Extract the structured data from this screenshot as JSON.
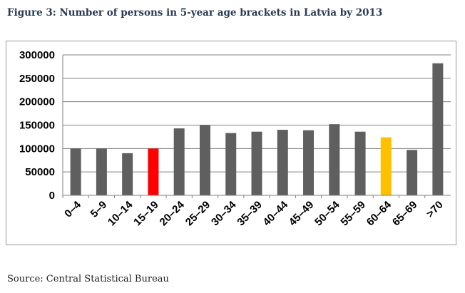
{
  "figure": {
    "title": "Figure 3: Number of persons in 5-year age brackets in Latvia by 2013",
    "source": "Source: Central Statistical Bureau"
  },
  "colors": {
    "default_bar": "#5f5f5f",
    "highlight_red": "#ff0000",
    "highlight_yellow": "#ffc000",
    "grid": "#808080"
  },
  "chart_data": {
    "type": "bar",
    "title": "",
    "xlabel": "",
    "ylabel": "",
    "categories": [
      "0–4",
      "5–9",
      "10–14",
      "15–19",
      "20–24",
      "25–29",
      "30–34",
      "35–39",
      "40–44",
      "45–49",
      "50–54",
      "55–59",
      "60–64",
      "65–69",
      ">70"
    ],
    "values": [
      100000,
      100000,
      90000,
      100000,
      143000,
      150000,
      133000,
      136000,
      140000,
      139000,
      152000,
      136000,
      124000,
      97000,
      282000
    ],
    "bar_colors": [
      "default",
      "default",
      "default",
      "red",
      "default",
      "default",
      "default",
      "default",
      "default",
      "default",
      "default",
      "default",
      "yellow",
      "default",
      "default"
    ],
    "ylim": [
      0,
      300000
    ],
    "yticks": [
      0,
      50000,
      100000,
      150000,
      200000,
      250000,
      300000
    ],
    "ytick_labels": [
      "0",
      "50000",
      "100000",
      "150000",
      "200000",
      "250000",
      "300000"
    ],
    "grid": true,
    "legend": "none"
  }
}
